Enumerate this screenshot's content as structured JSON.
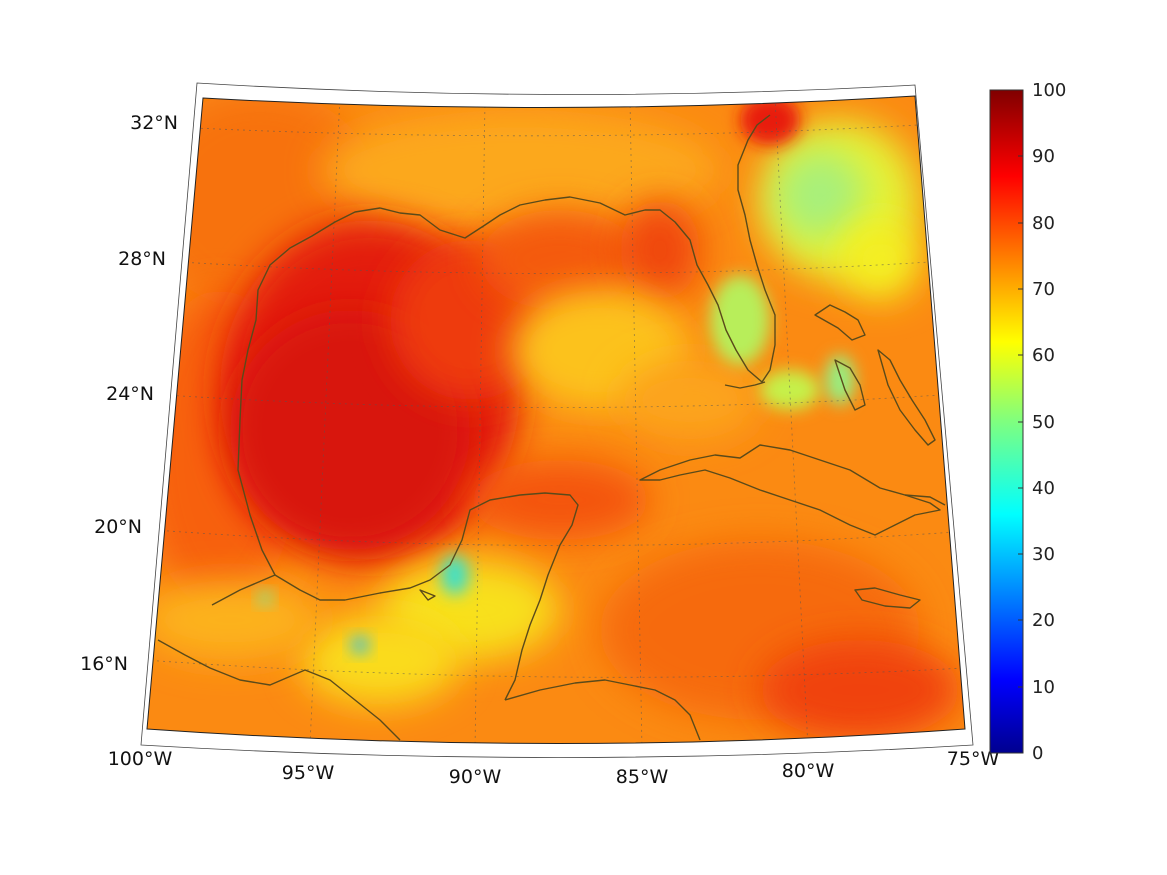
{
  "map": {
    "region": "Gulf of Mexico and Caribbean",
    "lon_range": [
      -100,
      -75
    ],
    "lat_range": [
      14,
      33
    ],
    "lon_ticks": [
      "100°W",
      "95°W",
      "90°W",
      "85°W",
      "80°W",
      "75°W"
    ],
    "lat_ticks": [
      "16°N",
      "20°N",
      "24°N",
      "28°N",
      "32°N"
    ],
    "coastline_color": "#5a4a1a",
    "grid": "dotted"
  },
  "colorbar": {
    "colormap": "jet",
    "min": 0,
    "max": 100,
    "ticks": [
      "0",
      "10",
      "20",
      "30",
      "40",
      "50",
      "60",
      "70",
      "80",
      "90",
      "100"
    ]
  },
  "chart_data": {
    "type": "heatmap",
    "title": "",
    "xlabel": "",
    "ylabel": "",
    "xlim": [
      -100,
      -75
    ],
    "ylim": [
      14,
      33
    ],
    "value_range": [
      0,
      100
    ],
    "features": [
      {
        "area": "Western Gulf of Mexico",
        "approx_value": 88
      },
      {
        "area": "Eastern Gulf of Mexico",
        "approx_value": 70
      },
      {
        "area": "Caribbean Sea",
        "approx_value": 78
      },
      {
        "area": "Atlantic off Florida",
        "approx_value": 58
      },
      {
        "area": "Bay of Campeche coast",
        "approx_value": 45
      }
    ]
  }
}
